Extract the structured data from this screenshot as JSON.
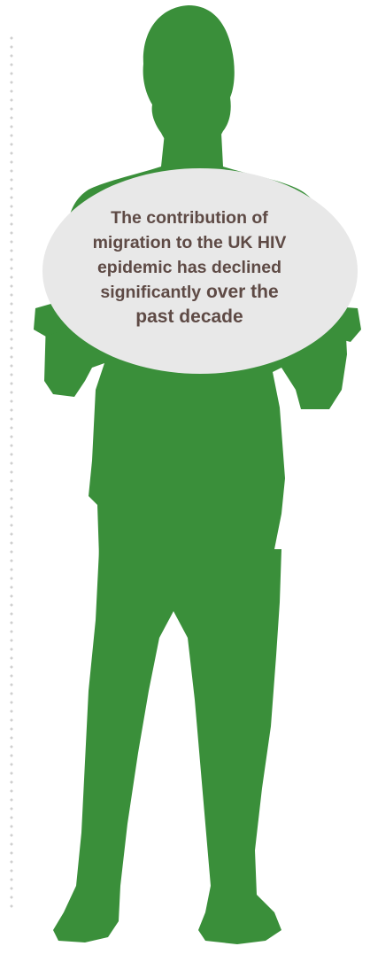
{
  "sign": {
    "line1": "The contribution of",
    "line2": "migration to the UK HIV",
    "line3": "epidemic has declined",
    "line4_a": "significantly",
    "line4_b": " over the",
    "line5": "past decade"
  },
  "colors": {
    "figure": "#3a8f3a",
    "sign_fill": "#e8e8e8",
    "text": "#5e4a45",
    "dots": "#cfcfcf"
  }
}
